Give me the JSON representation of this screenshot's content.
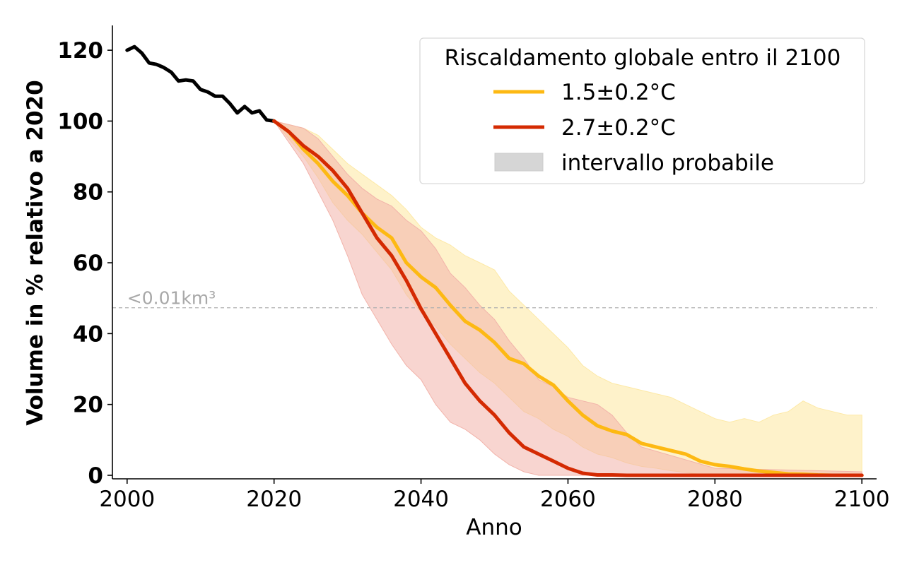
{
  "chart_data": {
    "type": "line",
    "xlabel": "Anno",
    "ylabel": "Volume in % relativo a 2020",
    "xlim": [
      1998,
      2102
    ],
    "ylim": [
      -1,
      127
    ],
    "xticks": [
      2000,
      2020,
      2040,
      2060,
      2080,
      2100
    ],
    "yticks": [
      0,
      20,
      40,
      60,
      80,
      100,
      120
    ],
    "grid": false,
    "legend": {
      "title": "Riscaldamento globale entro il 2100",
      "placement": "top-right",
      "entries": [
        {
          "label": "1.5±0.2°C",
          "type": "line",
          "color": "#fdb913"
        },
        {
          "label": "2.7±0.2°C",
          "type": "line",
          "color": "#d42a02"
        },
        {
          "label": "intervallo probabile",
          "type": "patch",
          "color": "#d6d6d6"
        }
      ]
    },
    "threshold": {
      "y": 47.3,
      "label": "<0.01km³",
      "color": "#b0b0b0"
    },
    "series": [
      {
        "color": "#000000",
        "x": [
          2000,
          2001,
          2002,
          2003,
          2004,
          2005,
          2006,
          2007,
          2008,
          2009,
          2010,
          2011,
          2012,
          2013,
          2014,
          2015,
          2016,
          2017,
          2018,
          2019,
          2020
        ],
        "y": [
          120,
          121,
          119.2,
          116.4,
          116,
          115.1,
          113.8,
          111.3,
          111.6,
          111.3,
          108.9,
          108.2,
          107,
          107,
          104.9,
          102.3,
          104.1,
          102.3,
          102.9,
          100.3,
          100
        ]
      },
      {
        "name": "1.5±0.2°C",
        "color": "#fdb913",
        "x": [
          2020,
          2022,
          2024,
          2026,
          2028,
          2030,
          2032,
          2034,
          2036,
          2038,
          2040,
          2042,
          2044,
          2046,
          2048,
          2050,
          2052,
          2054,
          2056,
          2058,
          2060,
          2062,
          2064,
          2066,
          2068,
          2070,
          2072,
          2074,
          2076,
          2078,
          2080,
          2082,
          2084,
          2086,
          2088,
          2090,
          2092,
          2094,
          2096,
          2098,
          2100
        ],
        "y": [
          100,
          97,
          92,
          88,
          83,
          79,
          74,
          70,
          67,
          60,
          56,
          53,
          48,
          43.5,
          41,
          37.5,
          33,
          31.5,
          28,
          25.5,
          21,
          17,
          14,
          12.5,
          11.5,
          9,
          8,
          7,
          6,
          4,
          3,
          2.5,
          1.8,
          1.2,
          0.8,
          0.4,
          0.3,
          0.1,
          0,
          0,
          0
        ]
      },
      {
        "name": "2.7±0.2°C",
        "color": "#d42a02",
        "x": [
          2020,
          2022,
          2024,
          2026,
          2028,
          2030,
          2032,
          2034,
          2036,
          2038,
          2040,
          2042,
          2044,
          2046,
          2048,
          2050,
          2052,
          2054,
          2056,
          2058,
          2060,
          2062,
          2064,
          2066,
          2068,
          2070,
          2080,
          2090,
          2100
        ],
        "y": [
          100,
          97,
          93,
          90,
          86,
          81,
          74,
          67,
          62,
          55,
          47,
          40,
          33,
          26,
          21,
          17,
          12,
          8,
          6,
          4,
          2,
          0.6,
          0.1,
          0.1,
          0,
          0,
          0,
          0,
          0
        ]
      }
    ],
    "ranges": [
      {
        "series": "1.5±0.2°C",
        "color": "#fde9a6",
        "x": [
          2020,
          2022,
          2024,
          2026,
          2028,
          2030,
          2032,
          2034,
          2036,
          2038,
          2040,
          2042,
          2044,
          2046,
          2048,
          2050,
          2052,
          2054,
          2056,
          2058,
          2060,
          2062,
          2064,
          2066,
          2068,
          2070,
          2072,
          2074,
          2076,
          2078,
          2080,
          2082,
          2084,
          2086,
          2088,
          2090,
          2092,
          2094,
          2096,
          2098,
          2100
        ],
        "lower": [
          100,
          95,
          90,
          84,
          77,
          72,
          68,
          63,
          58,
          51,
          46,
          42,
          37,
          33,
          29,
          26,
          22,
          18,
          16,
          13,
          11,
          8,
          6,
          5,
          3.5,
          2.5,
          2,
          1.3,
          0.8,
          0.3,
          0.1,
          0,
          0,
          0,
          0,
          0,
          0,
          0,
          0,
          0,
          0
        ],
        "upper": [
          100,
          99,
          98,
          96,
          92,
          88,
          85,
          82,
          79,
          75,
          70,
          67,
          65,
          62,
          60,
          58,
          52,
          48,
          44,
          40,
          36,
          31,
          28,
          26,
          25,
          24,
          23,
          22,
          20,
          18,
          16,
          15,
          16,
          15,
          17,
          18,
          21,
          19,
          18,
          17,
          17
        ]
      },
      {
        "series": "2.7±0.2°C",
        "color": "#f2b3aa",
        "x": [
          2020,
          2022,
          2024,
          2026,
          2028,
          2030,
          2032,
          2034,
          2036,
          2038,
          2040,
          2042,
          2044,
          2046,
          2048,
          2050,
          2052,
          2054,
          2056,
          2058,
          2060,
          2062,
          2064,
          2066,
          2068,
          2070,
          2080,
          2090,
          2100
        ],
        "lower": [
          100,
          94,
          88,
          80,
          72,
          62,
          51,
          44,
          37,
          31,
          27,
          20,
          15,
          13,
          10,
          6,
          3,
          1,
          0,
          0,
          0,
          0,
          0,
          0,
          0,
          0,
          0,
          0,
          0
        ],
        "upper": [
          100,
          99,
          98,
          95,
          90,
          85,
          81,
          78,
          76,
          72,
          69,
          64,
          57,
          53,
          48,
          44,
          38,
          33,
          27,
          25,
          22,
          21,
          20,
          17,
          12,
          8,
          2,
          1.5,
          1
        ]
      }
    ]
  }
}
